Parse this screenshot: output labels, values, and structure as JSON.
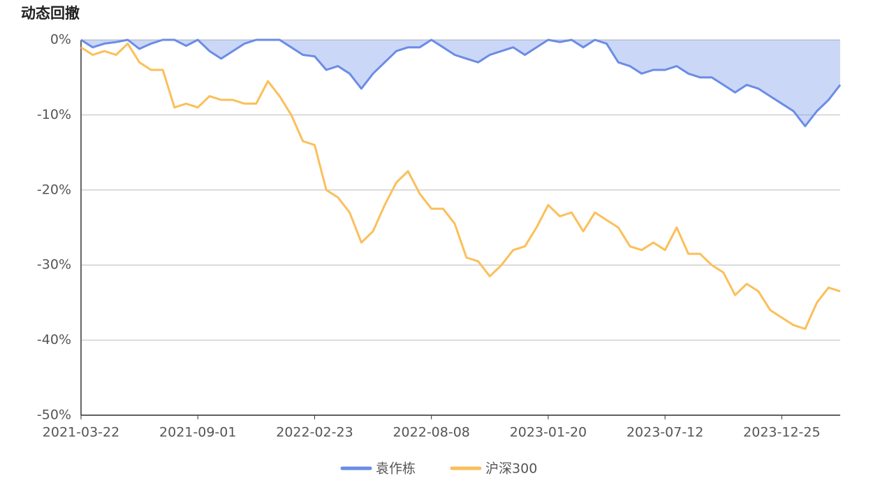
{
  "chart_data": {
    "type": "line",
    "title": "动态回撤",
    "x": [
      "2021-03-22",
      "2021-04-07",
      "2021-04-23",
      "2021-05-10",
      "2021-05-26",
      "2021-06-11",
      "2021-06-28",
      "2021-07-14",
      "2021-07-30",
      "2021-08-16",
      "2021-09-01",
      "2021-09-18",
      "2021-10-05",
      "2021-10-23",
      "2021-11-09",
      "2021-11-27",
      "2021-12-14",
      "2022-01-01",
      "2022-01-18",
      "2022-02-05",
      "2022-02-23",
      "2022-03-12",
      "2022-03-28",
      "2022-04-14",
      "2022-05-01",
      "2022-05-17",
      "2022-06-03",
      "2022-06-20",
      "2022-07-06",
      "2022-07-23",
      "2022-08-08",
      "2022-08-24",
      "2022-09-10",
      "2022-09-26",
      "2022-10-13",
      "2022-10-29",
      "2022-11-15",
      "2022-12-01",
      "2022-12-18",
      "2023-01-03",
      "2023-01-20",
      "2023-02-06",
      "2023-02-23",
      "2023-03-12",
      "2023-03-30",
      "2023-04-16",
      "2023-05-03",
      "2023-05-21",
      "2023-06-07",
      "2023-06-25",
      "2023-07-12",
      "2023-07-29",
      "2023-08-14",
      "2023-08-31",
      "2023-09-16",
      "2023-10-03",
      "2023-10-20",
      "2023-11-05",
      "2023-11-22",
      "2023-12-08",
      "2023-12-25",
      "2024-01-11",
      "2024-01-27",
      "2024-02-13",
      "2024-02-29",
      "2024-03-15"
    ],
    "xticks": [
      "2021-03-22",
      "2021-09-01",
      "2022-02-23",
      "2022-08-08",
      "2023-01-20",
      "2023-07-12",
      "2023-12-25"
    ],
    "series": [
      {
        "name": "袁作栋",
        "color": "#6b8ce6",
        "area": true,
        "area_color": "rgba(107,140,230,0.35)",
        "values": [
          0,
          -1,
          -0.5,
          -0.3,
          0,
          -1.2,
          -0.5,
          0,
          0,
          -0.8,
          0,
          -1.5,
          -2.5,
          -1.5,
          -0.5,
          0,
          0,
          0,
          -1,
          -2,
          -2.2,
          -4,
          -3.5,
          -4.5,
          -6.5,
          -4.5,
          -3,
          -1.5,
          -1,
          -1,
          0,
          -1,
          -2,
          -2.5,
          -3,
          -2,
          -1.5,
          -1,
          -2,
          -1,
          0,
          -0.3,
          0,
          -1,
          0,
          -0.5,
          -3,
          -3.5,
          -4.5,
          -4,
          -4,
          -3.5,
          -4.5,
          -5,
          -5,
          -6,
          -7,
          -6,
          -6.5,
          -7.5,
          -8.5,
          -9.5,
          -11.5,
          -9.5,
          -8,
          -6
        ]
      },
      {
        "name": "沪深300",
        "color": "#fbbf5a",
        "values": [
          -1,
          -2,
          -1.5,
          -2,
          -0.5,
          -3,
          -4,
          -4,
          -9,
          -8.5,
          -9,
          -7.5,
          -8,
          -8,
          -8.5,
          -8.5,
          -5.5,
          -7.5,
          -10,
          -13.5,
          -14,
          -20,
          -21,
          -23,
          -27,
          -25.5,
          -22,
          -19,
          -17.5,
          -20.5,
          -22.5,
          -22.5,
          -24.5,
          -29,
          -29.5,
          -31.5,
          -30,
          -28,
          -27.5,
          -25,
          -22,
          -23.5,
          -23,
          -25.5,
          -23,
          -24,
          -25,
          -27.5,
          -28,
          -27,
          -28,
          -25,
          -28.5,
          -28.5,
          -30,
          -31,
          -34,
          -32.5,
          -33.5,
          -36,
          -37,
          -38,
          -38.5,
          -35,
          -33,
          -33.5
        ]
      }
    ],
    "ylim": [
      -50,
      0
    ],
    "yticks": [
      {
        "value": 0,
        "label": "0%"
      },
      {
        "value": -10,
        "label": "-10%"
      },
      {
        "value": -20,
        "label": "-20%"
      },
      {
        "value": -30,
        "label": "-30%"
      },
      {
        "value": -40,
        "label": "-40%"
      },
      {
        "value": -50,
        "label": "-50%"
      }
    ],
    "grid": true,
    "legend": "bottom"
  }
}
